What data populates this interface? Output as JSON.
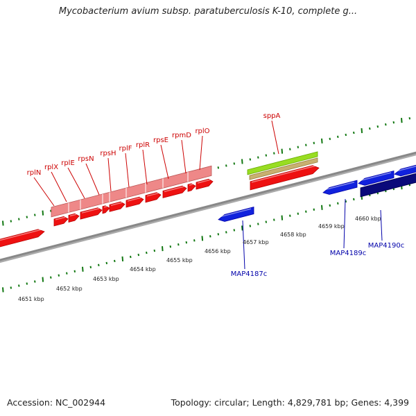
{
  "title": "Mycobacterium avium subsp. paratuberculosis K-10, complete g...",
  "footer": {
    "accession": "Accession: NC_002944",
    "topology": "Topology: circular; Length: 4,829,781 bp; Genes: 4,399"
  },
  "colors": {
    "forward_gene": "#ee1111",
    "forward_gene_light": "#ee8888",
    "reverse_gene": "#1122dd",
    "reverse_gene_dark": "#0a0a7a",
    "ncrna_green": "#99dd22",
    "ncrna_tan": "#c8b070",
    "backbone": "#888888",
    "tick": "#117711",
    "label_red": "#cc0000",
    "label_blue": "#0000aa"
  },
  "scale_labels": [
    "4651 kbp",
    "4652 kbp",
    "4653 kbp",
    "4654 kbp",
    "4655 kbp",
    "4656 kbp",
    "4657 kbp",
    "4658 kbp",
    "4659 kbp",
    "4660 kbp"
  ],
  "forward_gene_labels": [
    "rplN",
    "rplX",
    "rplE",
    "rpsN",
    "rpsH",
    "rplF",
    "rplR",
    "rpsE",
    "rpmD",
    "rplO",
    "sppA"
  ],
  "reverse_gene_labels": [
    "MAP4187c",
    "MAP4189c",
    "MAP4190c"
  ]
}
